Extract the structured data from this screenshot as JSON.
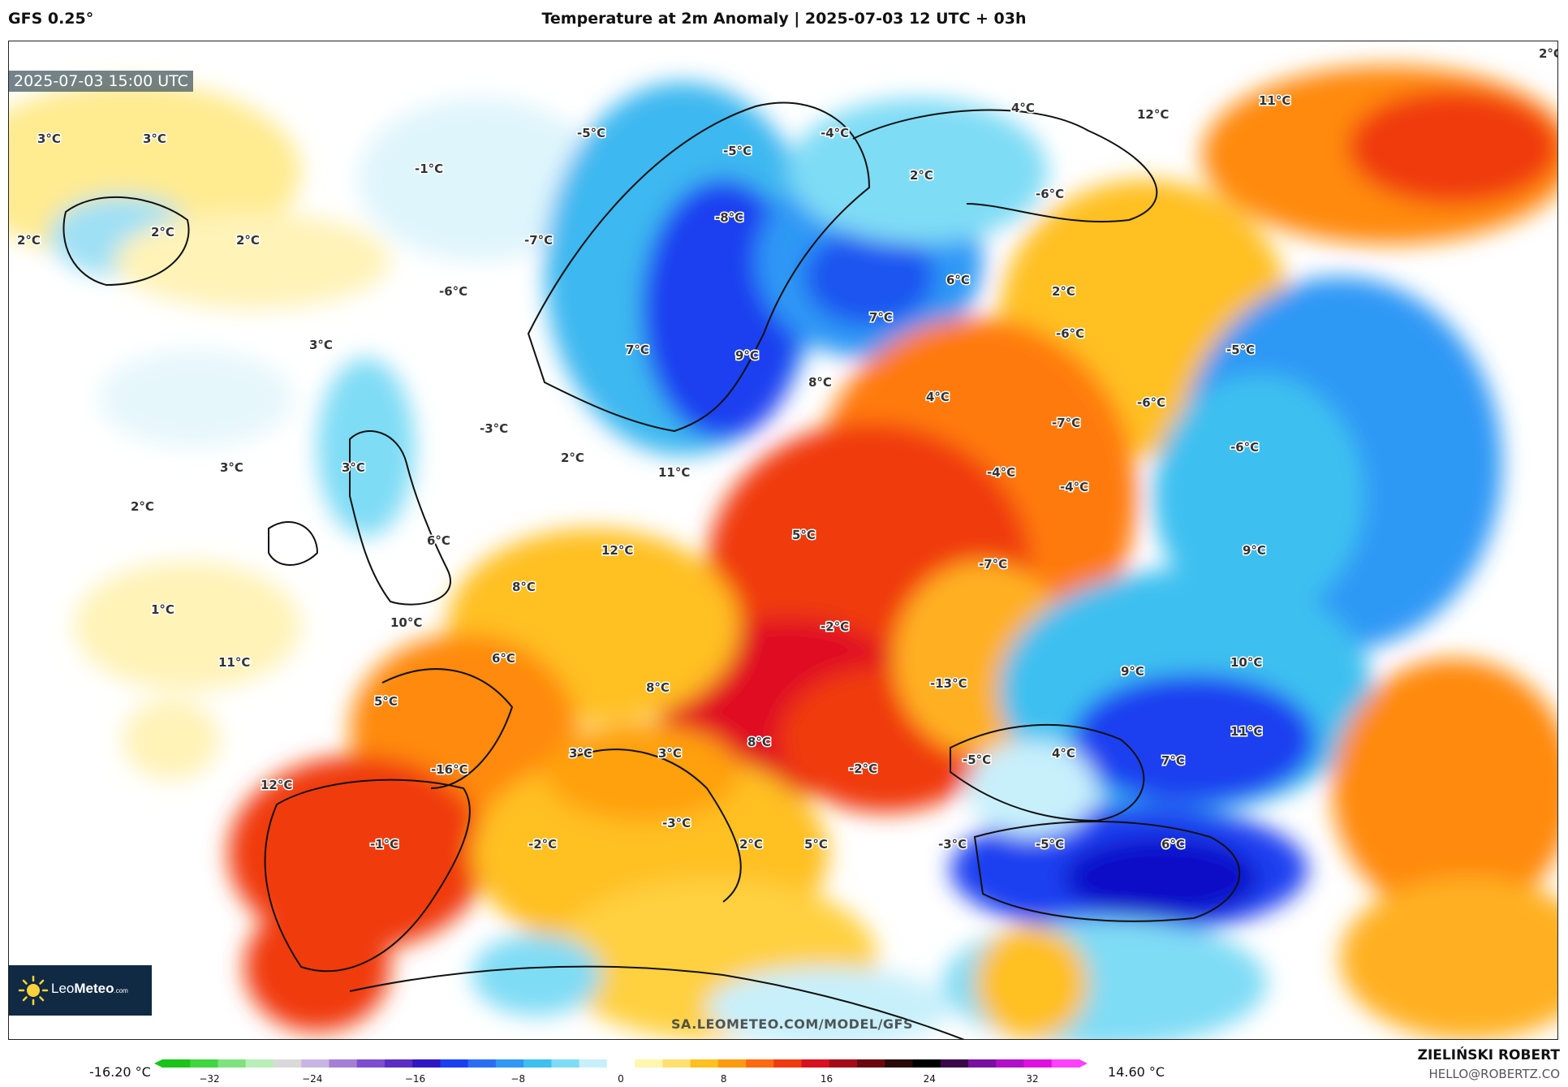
{
  "header": {
    "model": "GFS 0.25°",
    "title": "Temperature at 2m Anomaly | 2025-07-03 12 UTC + 03h"
  },
  "map": {
    "valid_time": "2025-07-03 15:00 UTC",
    "watermark": "SA.LEOMETEO.COM/MODEL/GFS",
    "logo": {
      "name_light": "Leo",
      "name_bold": "Meteo",
      "domain": ".com"
    },
    "labels": [
      {
        "text": "3°C"
      },
      {
        "text": "3°C"
      },
      {
        "text": "2°C"
      },
      {
        "text": "2°C"
      },
      {
        "text": "2°C"
      },
      {
        "text": "-1°C"
      },
      {
        "text": "-5°C"
      },
      {
        "text": "-5°C"
      },
      {
        "text": "-4°C"
      },
      {
        "text": "4°C"
      },
      {
        "text": "12°C"
      },
      {
        "text": "11°C"
      },
      {
        "text": "2°C"
      },
      {
        "text": "-6°C"
      },
      {
        "text": "-8°C"
      },
      {
        "text": "-7°C"
      },
      {
        "text": "-6°C"
      },
      {
        "text": "3°C"
      },
      {
        "text": "6°C"
      },
      {
        "text": "7°C"
      },
      {
        "text": "2°C"
      },
      {
        "text": "9°C"
      },
      {
        "text": "7°C"
      },
      {
        "text": "8°C"
      },
      {
        "text": "4°C"
      },
      {
        "text": "-6°C"
      },
      {
        "text": "-5°C"
      },
      {
        "text": "-6°C"
      },
      {
        "text": "-7°C"
      },
      {
        "text": "-6°C"
      },
      {
        "text": "3°C"
      },
      {
        "text": "3°C"
      },
      {
        "text": "2°C"
      },
      {
        "text": "2°C"
      },
      {
        "text": "11°C"
      },
      {
        "text": "-4°C"
      },
      {
        "text": "-4°C"
      },
      {
        "text": "-3°C"
      },
      {
        "text": "6°C"
      },
      {
        "text": "5°C"
      },
      {
        "text": "12°C"
      },
      {
        "text": "9°C"
      },
      {
        "text": "-7°C"
      },
      {
        "text": "8°C"
      },
      {
        "text": "1°C"
      },
      {
        "text": "10°C"
      },
      {
        "text": "-2°C"
      },
      {
        "text": "11°C"
      },
      {
        "text": "6°C"
      },
      {
        "text": "-13°C"
      },
      {
        "text": "9°C"
      },
      {
        "text": "10°C"
      },
      {
        "text": "5°C"
      },
      {
        "text": "8°C"
      },
      {
        "text": "8°C"
      },
      {
        "text": "11°C"
      },
      {
        "text": "3°C"
      },
      {
        "text": "3°C"
      },
      {
        "text": "-5°C"
      },
      {
        "text": "4°C"
      },
      {
        "text": "7°C"
      },
      {
        "text": "-16°C"
      },
      {
        "text": "-2°C"
      },
      {
        "text": "12°C"
      },
      {
        "text": "-3°C"
      },
      {
        "text": "-1°C"
      },
      {
        "text": "-2°C"
      },
      {
        "text": "2°C"
      },
      {
        "text": "5°C"
      },
      {
        "text": "-3°C"
      },
      {
        "text": "-5°C"
      },
      {
        "text": "6°C"
      },
      {
        "text": "2°C"
      }
    ]
  },
  "colorbar": {
    "min_label": "-16.20 °C",
    "max_label": "14.60 °C",
    "ticks": [
      "−32",
      "−24",
      "−16",
      "−8",
      "0",
      "8",
      "16",
      "24",
      "32"
    ],
    "colors": [
      "#18c418",
      "#3fd63f",
      "#7fe27f",
      "#b8efb8",
      "#d9d9d9",
      "#c9b5e3",
      "#a57fd6",
      "#7d4ed0",
      "#5a2ec4",
      "#2f18c4",
      "#1a3ff0",
      "#2a6ef5",
      "#2f98f5",
      "#3cc0f0",
      "#7fdcf5",
      "#c8f0fb",
      "#ffffff",
      "#fff6b0",
      "#ffe070",
      "#ffc020",
      "#ff9a10",
      "#ff6a10",
      "#f03a10",
      "#d81020",
      "#a50a18",
      "#6a0810",
      "#2a0808",
      "#000000",
      "#3a0848",
      "#7a10a0",
      "#b010c8",
      "#e010e0",
      "#ff40ff"
    ]
  },
  "credit": {
    "author": "ZIELIŃSKI ROBERT",
    "email": "HELLO@ROBERTZ.CO"
  }
}
